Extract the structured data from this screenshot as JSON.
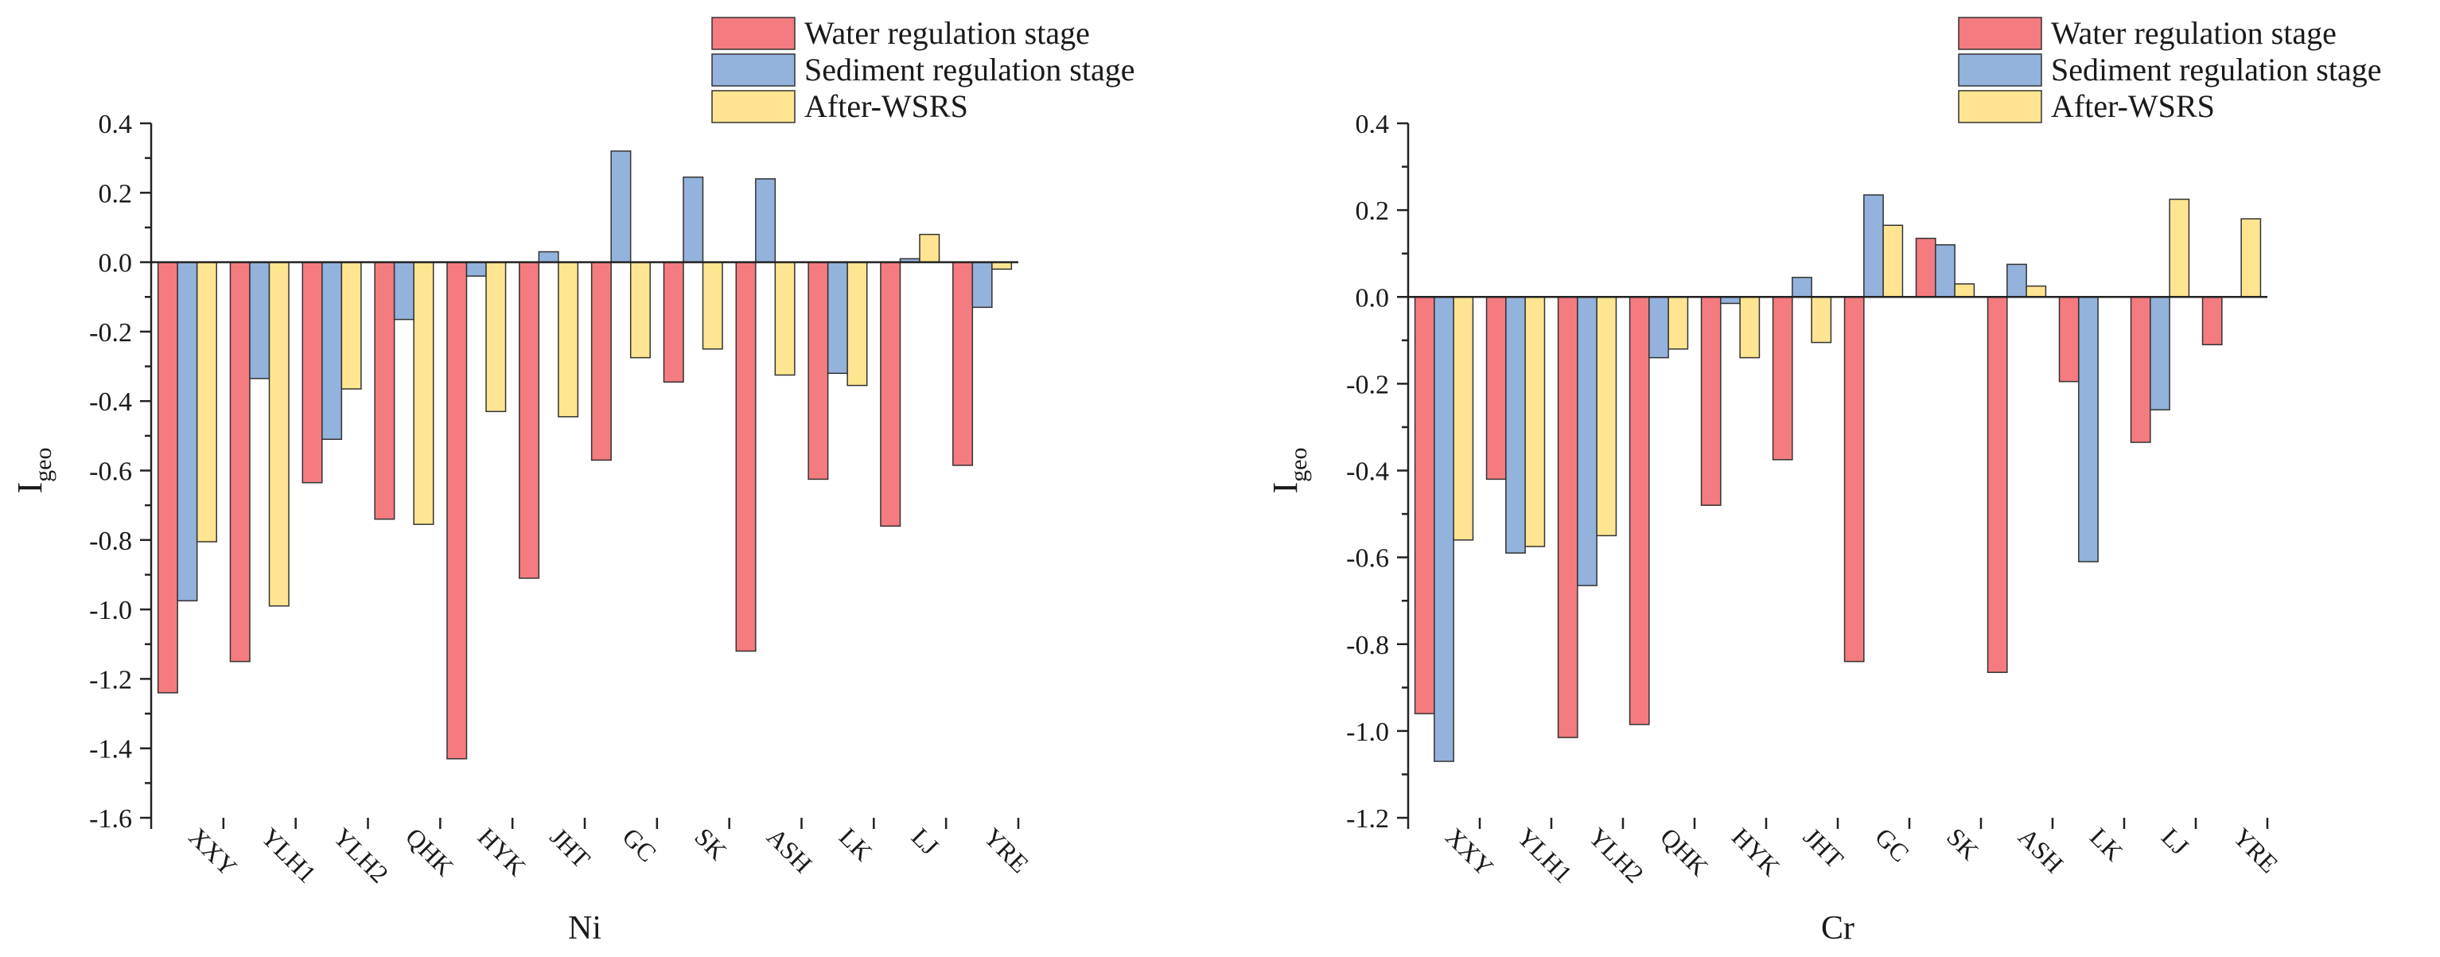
{
  "chart_data": [
    {
      "type": "bar",
      "title": "",
      "xlabel": "Ni",
      "ylabel": "I",
      "ylabel_sub": "geo",
      "ylim": [
        -1.6,
        0.4
      ],
      "yticks": [
        -1.6,
        -1.4,
        -1.2,
        -1.0,
        -0.8,
        -0.6,
        -0.4,
        -0.2,
        0.0,
        0.2,
        0.4
      ],
      "tick_decimals": 1,
      "legend_position": "top-right",
      "categories": [
        "XXY",
        "YLH1",
        "YLH2",
        "QHK",
        "HYK",
        "JHT",
        "GC",
        "SK",
        "ASH",
        "LK",
        "LJ",
        "YRE"
      ],
      "series": [
        {
          "name": "Water regulation stage",
          "color": "#f47b80",
          "values": [
            -1.24,
            -1.15,
            -0.635,
            -0.74,
            -1.43,
            -0.91,
            -0.57,
            -0.345,
            -1.12,
            -0.625,
            -0.76,
            -0.585
          ]
        },
        {
          "name": "Sediment regulation stage",
          "color": "#93b2dc",
          "values": [
            -0.975,
            -0.335,
            -0.51,
            -0.165,
            -0.04,
            0.03,
            0.32,
            0.245,
            0.24,
            -0.32,
            0.01,
            -0.13
          ]
        },
        {
          "name": "After-WSRS",
          "color": "#ffe591",
          "values": [
            -0.805,
            -0.99,
            -0.365,
            -0.755,
            -0.43,
            -0.445,
            -0.275,
            -0.25,
            -0.325,
            -0.355,
            0.08,
            -0.02
          ]
        }
      ]
    },
    {
      "type": "bar",
      "title": "",
      "xlabel": "Cr",
      "ylabel": "I",
      "ylabel_sub": "geo",
      "ylim": [
        -1.2,
        0.4
      ],
      "yticks": [
        -1.2,
        -1.0,
        -0.8,
        -0.6,
        -0.4,
        -0.2,
        0.0,
        0.2,
        0.4
      ],
      "tick_decimals": 1,
      "legend_position": "top-right",
      "categories": [
        "XXY",
        "YLH1",
        "YLH2",
        "QHK",
        "HYK",
        "JHT",
        "GC",
        "SK",
        "ASH",
        "LK",
        "LJ",
        "YRE"
      ],
      "series": [
        {
          "name": "Water regulation stage",
          "color": "#f47b80",
          "values": [
            -0.96,
            -0.42,
            -1.015,
            -0.985,
            -0.48,
            -0.375,
            -0.84,
            0.135,
            -0.865,
            -0.195,
            -0.335,
            -0.11
          ]
        },
        {
          "name": "Sediment regulation stage",
          "color": "#93b2dc",
          "values": [
            -1.07,
            -0.59,
            -0.665,
            -0.14,
            -0.015,
            0.045,
            0.235,
            0.12,
            0.075,
            -0.61,
            -0.26,
            0.0
          ]
        },
        {
          "name": "After-WSRS",
          "color": "#ffe591",
          "values": [
            -0.56,
            -0.575,
            -0.55,
            -0.12,
            -0.14,
            -0.105,
            0.165,
            0.03,
            0.025,
            0.0,
            0.225,
            0.18
          ]
        }
      ]
    }
  ]
}
